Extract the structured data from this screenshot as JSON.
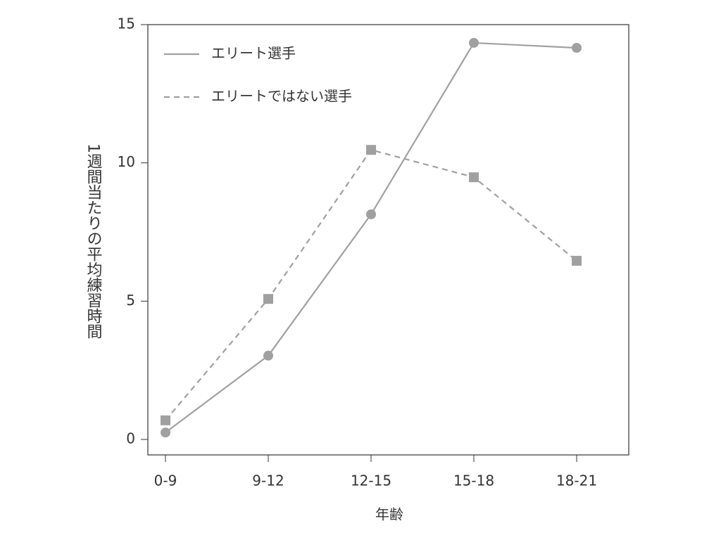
{
  "chart_data": {
    "type": "line",
    "x_label": "年齢",
    "y_label": "1週間当たりの平均練習時間",
    "categories": [
      "0-9",
      "9-12",
      "12-15",
      "15-18",
      "18-21"
    ],
    "series": [
      {
        "name": "エリート選手",
        "color": "#a0a0a0",
        "marker": "circle",
        "line_style": "solid",
        "values": [
          0.25,
          3.03,
          8.14,
          14.34,
          14.16
        ]
      },
      {
        "name": "エリートではない選手",
        "color": "#a0a0a0",
        "marker": "square",
        "line_style": "dashed",
        "values": [
          0.69,
          5.08,
          10.47,
          9.48,
          6.46
        ]
      }
    ],
    "ylim": [
      -0.56,
      15
    ],
    "yticks": [
      0,
      5,
      10,
      15
    ],
    "legend": "upper-left",
    "grid": false
  }
}
